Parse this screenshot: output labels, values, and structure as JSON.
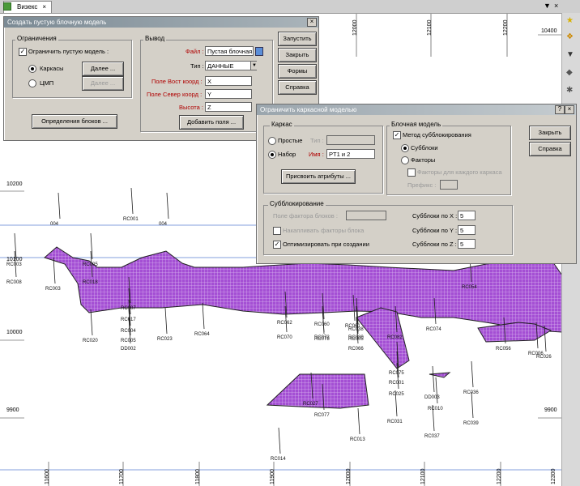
{
  "tab": {
    "label": "Визекс",
    "close": "×"
  },
  "window_controls": {
    "close": "×"
  },
  "right_toolbar": {
    "icons": [
      "star-icon",
      "bookmark-icon",
      "arrow-down-icon",
      "shape-icon",
      "settings-icon"
    ]
  },
  "map": {
    "top_axis": {
      "labels": [
        "12000",
        "12100",
        "12200"
      ],
      "corner": "10400"
    },
    "y_labels": [
      "10200",
      "10100",
      "10000",
      "9900"
    ],
    "y_labels_right": [
      "9900"
    ],
    "x_labels_bottom": [
      "11600",
      "11700",
      "11800",
      "11900",
      "12000",
      "12100",
      "12200",
      "12300"
    ],
    "drillholes": [
      "004",
      "RC001",
      "004",
      "RC003",
      "RC005",
      "RC008",
      "RC018",
      "RC007",
      "RC017",
      "RC003",
      "RC004",
      "RC005",
      "DD002",
      "RC023",
      "RC020",
      "RC064",
      "RC062",
      "RC070",
      "RC060",
      "RC078",
      "RC075",
      "RC072",
      "RC066",
      "RC080",
      "RC082",
      "RC061",
      "RC013",
      "RC031",
      "RC077",
      "RC037",
      "DD003",
      "RC010",
      "RC039",
      "RC036",
      "RC054",
      "RC056",
      "RC006",
      "RC026",
      "RC038",
      "RC074",
      "RC005",
      "RC014",
      "RC025",
      "RC001",
      "RC027"
    ]
  },
  "dialog_block": {
    "title": "Создать пустую блочную модель",
    "close": "×",
    "restrictions": {
      "label": "Ограничения",
      "limit_check": "Ограничить пустую модель :",
      "wireframes": "Каркасы",
      "dtm": "ЦМП",
      "next1": "Далее ...",
      "next2": "Далее ..."
    },
    "block_def_btn": "Определения блоков ...",
    "output": {
      "label": "Вывод",
      "file_label": "Файл :",
      "file_value": "Пустая блочная",
      "type_label": "Тип :",
      "type_value": "ДАННЫЕ",
      "east_label": "Поле Вост коорд :",
      "east_value": "X",
      "north_label": "Поле Север коорд :",
      "north_value": "Y",
      "height_label": "Высота :",
      "height_value": "Z",
      "add_fields": "Добавить поля ..."
    },
    "buttons": [
      "Запустить",
      "Закрыть",
      "Формы",
      "Справка"
    ]
  },
  "dialog_wire": {
    "title": "Ограничить каркасной моделью",
    "help": "?",
    "close": "×",
    "frame": {
      "label": "Каркас",
      "simple": "Простые",
      "type_label": "Тип :",
      "set": "Набор",
      "name_label": "Имя :",
      "name_value": "PT1 и 2",
      "assign_btn": "Присвоить атрибуты ..."
    },
    "block_model": {
      "label": "Блочная модель",
      "subblock_method": "Метод субблокирования",
      "subblocks": "Субблоки",
      "factors": "Факторы",
      "factors_each": "Факторы для каждого каркаса",
      "prefix_label": "Префикс :"
    },
    "subblocking": {
      "label": "Субблокирование",
      "factor_field": "Поле фактора блоков :",
      "accumulate": "Накапливать факторы блока",
      "optimize": "Оптимизировать при создании",
      "sx_label": "Субблоки по X :",
      "sx": "5",
      "sy_label": "Субблоки по Y :",
      "sy": "5",
      "sz_label": "Субблоки по Z :",
      "sz": "5"
    },
    "buttons": [
      "Закрыть",
      "Справка"
    ]
  }
}
